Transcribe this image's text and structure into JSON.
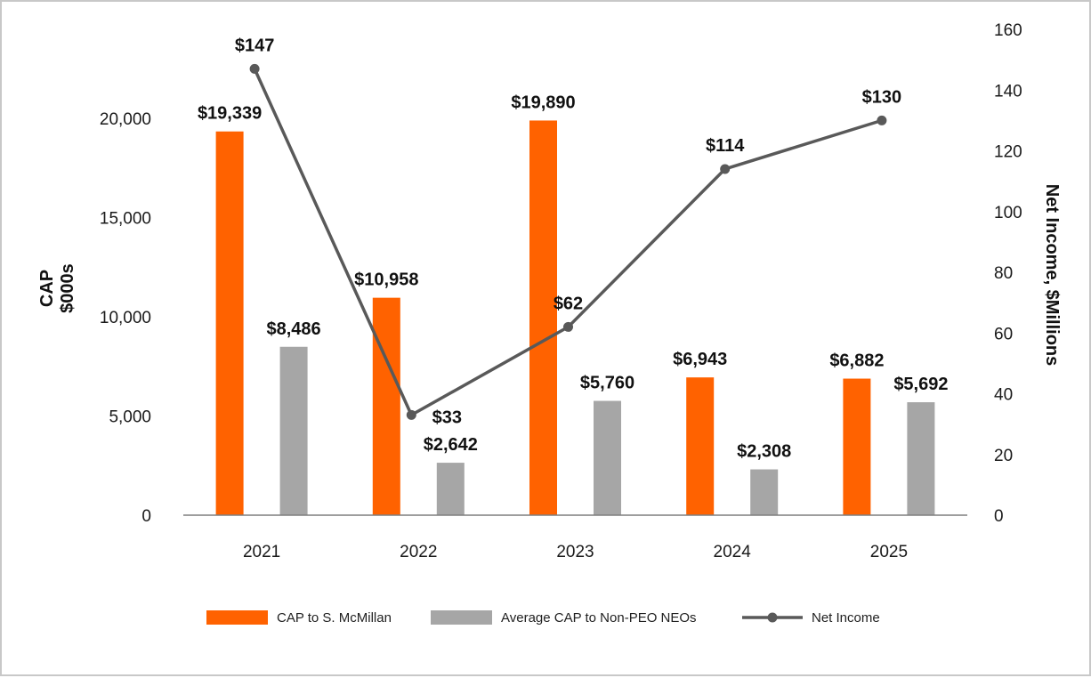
{
  "chart_data": {
    "type": "bar",
    "categories": [
      "2021",
      "2022",
      "2023",
      "2024",
      "2025"
    ],
    "series": [
      {
        "name": "CAP to S. McMillan",
        "kind": "bar",
        "axis": "left",
        "color": "#ff6200",
        "values": [
          19339,
          10958,
          19890,
          6943,
          6882
        ],
        "labels": [
          "$19,339",
          "$10,958",
          "$19,890",
          "$6,943",
          "$6,882"
        ]
      },
      {
        "name": "Average CAP to Non-PEO NEOs",
        "kind": "bar",
        "axis": "left",
        "color": "#a6a6a6",
        "values": [
          8486,
          2642,
          5760,
          2308,
          5692
        ],
        "labels": [
          "$8,486",
          "$2,642",
          "$5,760",
          "$2,308",
          "$5,692"
        ]
      },
      {
        "name": "Net Income",
        "kind": "line",
        "axis": "right",
        "color": "#595959",
        "values": [
          147,
          33,
          62,
          114,
          130
        ],
        "labels": [
          "$147",
          "$33",
          "$62",
          "$114",
          "$130"
        ]
      }
    ],
    "ylabel_lines": [
      "CAP",
      "$000s"
    ],
    "y2label": "Net Income, $Millions",
    "ylim": [
      0,
      24500
    ],
    "y2lim": [
      0,
      160
    ],
    "yticks": [
      0,
      5000,
      10000,
      15000,
      20000
    ],
    "ytick_labels": [
      "0",
      "5,000",
      "10,000",
      "15,000",
      "20,000"
    ],
    "y2ticks": [
      0,
      20,
      40,
      60,
      80,
      100,
      120,
      140,
      160
    ],
    "y2tick_labels": [
      "0",
      "20",
      "40",
      "60",
      "80",
      "100",
      "120",
      "140",
      "160"
    ],
    "legend_position": "bottom-center",
    "grid": false
  }
}
